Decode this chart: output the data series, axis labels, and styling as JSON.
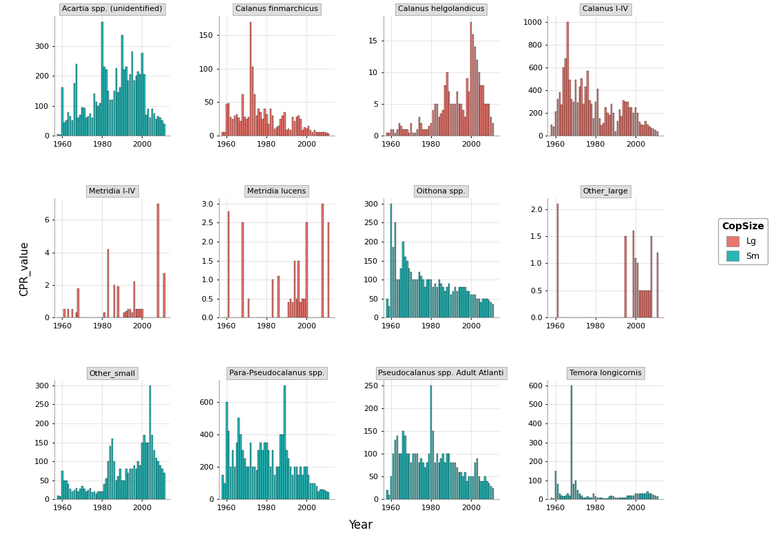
{
  "panels": [
    {
      "title": "Acartia spp. (unidentified)",
      "color": "#2ab5b5",
      "size": "Sm",
      "years": [
        1958,
        1959,
        1960,
        1961,
        1962,
        1963,
        1964,
        1965,
        1966,
        1967,
        1968,
        1969,
        1970,
        1971,
        1972,
        1973,
        1974,
        1975,
        1976,
        1977,
        1978,
        1979,
        1980,
        1981,
        1982,
        1983,
        1984,
        1985,
        1986,
        1987,
        1988,
        1989,
        1990,
        1991,
        1992,
        1993,
        1994,
        1995,
        1996,
        1997,
        1998,
        1999,
        2000,
        2001,
        2002,
        2003,
        2004,
        2005,
        2006,
        2007,
        2008,
        2009,
        2010,
        2011
      ],
      "values": [
        5,
        3,
        160,
        45,
        50,
        78,
        65,
        50,
        175,
        240,
        60,
        70,
        95,
        92,
        60,
        65,
        75,
        60,
        140,
        112,
        100,
        108,
        380,
        230,
        220,
        150,
        120,
        120,
        150,
        225,
        145,
        160,
        335,
        220,
        230,
        185,
        205,
        280,
        185,
        200,
        215,
        205,
        275,
        205,
        70,
        90,
        60,
        90,
        75,
        55,
        65,
        60,
        50,
        40
      ]
    },
    {
      "title": "Calanus finmarchicus",
      "color": "#e8766d",
      "size": "Lg",
      "years": [
        1958,
        1959,
        1960,
        1961,
        1962,
        1963,
        1964,
        1965,
        1966,
        1967,
        1968,
        1969,
        1970,
        1971,
        1972,
        1973,
        1974,
        1975,
        1976,
        1977,
        1978,
        1979,
        1980,
        1981,
        1982,
        1983,
        1984,
        1985,
        1986,
        1987,
        1988,
        1989,
        1990,
        1991,
        1992,
        1993,
        1994,
        1995,
        1996,
        1997,
        1998,
        1999,
        2000,
        2001,
        2002,
        2003,
        2004,
        2005,
        2006,
        2007,
        2008,
        2009,
        2010,
        2011
      ],
      "values": [
        5,
        5,
        47,
        48,
        28,
        25,
        30,
        32,
        27,
        22,
        62,
        28,
        25,
        28,
        170,
        103,
        62,
        30,
        40,
        35,
        25,
        40,
        32,
        18,
        40,
        30,
        10,
        12,
        15,
        25,
        30,
        35,
        8,
        10,
        8,
        28,
        22,
        28,
        30,
        25,
        8,
        12,
        10,
        15,
        8,
        5,
        8,
        5,
        5,
        5,
        5,
        5,
        4,
        3
      ]
    },
    {
      "title": "Calanus helgolandicus",
      "color": "#e8766d",
      "size": "Lg",
      "years": [
        1958,
        1959,
        1960,
        1961,
        1962,
        1963,
        1964,
        1965,
        1966,
        1967,
        1968,
        1969,
        1970,
        1971,
        1972,
        1973,
        1974,
        1975,
        1976,
        1977,
        1978,
        1979,
        1980,
        1981,
        1982,
        1983,
        1984,
        1985,
        1986,
        1987,
        1988,
        1989,
        1990,
        1991,
        1992,
        1993,
        1994,
        1995,
        1996,
        1997,
        1998,
        1999,
        2000,
        2001,
        2002,
        2003,
        2004,
        2005,
        2006,
        2007,
        2008,
        2009,
        2010,
        2011
      ],
      "values": [
        0.5,
        0.5,
        1,
        1,
        0.5,
        1,
        2,
        1.5,
        1,
        1,
        1,
        0.5,
        2,
        0.5,
        0.5,
        1,
        3,
        2,
        1,
        1,
        1,
        1.5,
        2,
        4,
        5,
        5,
        3,
        3.5,
        4,
        8,
        10,
        7,
        5,
        5,
        5,
        7,
        5,
        5,
        4,
        3,
        9,
        7,
        18,
        16,
        14,
        12,
        10,
        8,
        8,
        5,
        5,
        5,
        3,
        2
      ]
    },
    {
      "title": "Calanus I-IV",
      "color": "#e8766d",
      "size": "Lg",
      "years": [
        1958,
        1959,
        1960,
        1961,
        1962,
        1963,
        1964,
        1965,
        1966,
        1967,
        1968,
        1969,
        1970,
        1971,
        1972,
        1973,
        1974,
        1975,
        1976,
        1977,
        1978,
        1979,
        1980,
        1981,
        1982,
        1983,
        1984,
        1985,
        1986,
        1987,
        1988,
        1989,
        1990,
        1991,
        1992,
        1993,
        1994,
        1995,
        1996,
        1997,
        1998,
        1999,
        2000,
        2001,
        2002,
        2003,
        2004,
        2005,
        2006,
        2007,
        2008,
        2009,
        2010,
        2011
      ],
      "values": [
        100,
        80,
        210,
        320,
        380,
        270,
        600,
        680,
        1000,
        490,
        320,
        300,
        490,
        290,
        430,
        500,
        280,
        430,
        570,
        310,
        280,
        150,
        300,
        410,
        150,
        90,
        110,
        250,
        200,
        180,
        280,
        200,
        35,
        130,
        230,
        170,
        310,
        300,
        300,
        250,
        250,
        200,
        250,
        200,
        120,
        100,
        90,
        130,
        100,
        80,
        70,
        60,
        50,
        40
      ]
    },
    {
      "title": "Metridia I-IV",
      "color": "#e8766d",
      "size": "Lg",
      "years": [
        1958,
        1959,
        1960,
        1961,
        1962,
        1963,
        1964,
        1965,
        1966,
        1967,
        1968,
        1969,
        1970,
        1971,
        1972,
        1973,
        1974,
        1975,
        1976,
        1977,
        1978,
        1979,
        1980,
        1981,
        1982,
        1983,
        1984,
        1985,
        1986,
        1987,
        1988,
        1989,
        1990,
        1991,
        1992,
        1993,
        1994,
        1995,
        1996,
        1997,
        1998,
        1999,
        2000,
        2001,
        2002,
        2003,
        2004,
        2005,
        2006,
        2007,
        2008,
        2009,
        2010,
        2011
      ],
      "values": [
        0,
        0,
        0,
        0.5,
        0,
        0.5,
        0,
        0.5,
        0,
        0.3,
        1.8,
        0,
        0,
        0,
        0,
        0,
        0,
        0,
        0,
        0,
        0,
        0,
        0,
        0.3,
        0,
        4.2,
        0,
        0,
        2,
        0,
        1.9,
        0,
        0,
        0.3,
        0.4,
        0.5,
        0.5,
        0.3,
        2.2,
        0.5,
        0.5,
        0.5,
        0.5,
        0,
        0,
        0,
        0,
        0,
        0,
        0,
        7,
        0,
        0,
        2.7
      ]
    },
    {
      "title": "Metridia lucens",
      "color": "#e8766d",
      "size": "Lg",
      "years": [
        1958,
        1959,
        1960,
        1961,
        1962,
        1963,
        1964,
        1965,
        1966,
        1967,
        1968,
        1969,
        1970,
        1971,
        1972,
        1973,
        1974,
        1975,
        1976,
        1977,
        1978,
        1979,
        1980,
        1981,
        1982,
        1983,
        1984,
        1985,
        1986,
        1987,
        1988,
        1989,
        1990,
        1991,
        1992,
        1993,
        1994,
        1995,
        1996,
        1997,
        1998,
        1999,
        2000,
        2001,
        2002,
        2003,
        2004,
        2005,
        2006,
        2007,
        2008,
        2009,
        2010,
        2011
      ],
      "values": [
        0,
        0,
        0,
        2.8,
        0,
        0,
        0,
        0,
        0,
        0,
        2.5,
        0,
        0,
        0.5,
        0,
        0,
        0,
        0,
        0,
        0,
        0,
        0,
        0,
        0,
        0,
        1,
        0,
        0,
        1.1,
        0,
        0,
        0,
        0,
        0.4,
        0.5,
        0.4,
        1.5,
        0.5,
        1.5,
        0.4,
        0.5,
        0.5,
        2.5,
        0,
        0,
        0,
        0,
        0,
        0,
        0,
        3,
        0,
        0,
        2.5
      ]
    },
    {
      "title": "Oithona spp.",
      "color": "#2ab5b5",
      "size": "Sm",
      "years": [
        1958,
        1959,
        1960,
        1961,
        1962,
        1963,
        1964,
        1965,
        1966,
        1967,
        1968,
        1969,
        1970,
        1971,
        1972,
        1973,
        1974,
        1975,
        1976,
        1977,
        1978,
        1979,
        1980,
        1981,
        1982,
        1983,
        1984,
        1985,
        1986,
        1987,
        1988,
        1989,
        1990,
        1991,
        1992,
        1993,
        1994,
        1995,
        1996,
        1997,
        1998,
        1999,
        2000,
        2001,
        2002,
        2003,
        2004,
        2005,
        2006,
        2007,
        2008,
        2009,
        2010,
        2011
      ],
      "values": [
        50,
        30,
        300,
        185,
        250,
        100,
        100,
        130,
        200,
        160,
        150,
        130,
        120,
        100,
        100,
        100,
        120,
        110,
        100,
        80,
        100,
        100,
        100,
        80,
        90,
        80,
        100,
        90,
        80,
        70,
        80,
        90,
        60,
        70,
        80,
        70,
        80,
        80,
        80,
        80,
        70,
        70,
        60,
        60,
        60,
        50,
        50,
        40,
        50,
        50,
        50,
        45,
        40,
        35
      ]
    },
    {
      "title": "Other_large",
      "color": "#e8766d",
      "size": "Lg",
      "years": [
        1958,
        1959,
        1960,
        1961,
        1962,
        1963,
        1964,
        1965,
        1966,
        1967,
        1968,
        1969,
        1970,
        1971,
        1972,
        1973,
        1974,
        1975,
        1976,
        1977,
        1978,
        1979,
        1980,
        1981,
        1982,
        1983,
        1984,
        1985,
        1986,
        1987,
        1988,
        1989,
        1990,
        1991,
        1992,
        1993,
        1994,
        1995,
        1996,
        1997,
        1998,
        1999,
        2000,
        2001,
        2002,
        2003,
        2004,
        2005,
        2006,
        2007,
        2008,
        2009,
        2010,
        2011
      ],
      "values": [
        0,
        0,
        0,
        2.1,
        0,
        0,
        0,
        0,
        0,
        0,
        0,
        0,
        0,
        0,
        0,
        0,
        0,
        0,
        0,
        0,
        0,
        0,
        0,
        0,
        0,
        0,
        0,
        0,
        0,
        0,
        0,
        0,
        0,
        0,
        0,
        0,
        0,
        1.5,
        0,
        0,
        0,
        1.6,
        1.1,
        1,
        0.5,
        0.5,
        0.5,
        0.5,
        0.5,
        0.5,
        1.5,
        0,
        0,
        1.2
      ]
    },
    {
      "title": "Other_small",
      "color": "#2ab5b5",
      "size": "Sm",
      "years": [
        1958,
        1959,
        1960,
        1961,
        1962,
        1963,
        1964,
        1965,
        1966,
        1967,
        1968,
        1969,
        1970,
        1971,
        1972,
        1973,
        1974,
        1975,
        1976,
        1977,
        1978,
        1979,
        1980,
        1981,
        1982,
        1983,
        1984,
        1985,
        1986,
        1987,
        1988,
        1989,
        1990,
        1991,
        1992,
        1993,
        1994,
        1995,
        1996,
        1997,
        1998,
        1999,
        2000,
        2001,
        2002,
        2003,
        2004,
        2005,
        2006,
        2007,
        2008,
        2009,
        2010,
        2011
      ],
      "values": [
        10,
        8,
        75,
        50,
        50,
        40,
        28,
        20,
        25,
        30,
        20,
        28,
        35,
        28,
        20,
        25,
        30,
        18,
        20,
        15,
        20,
        20,
        20,
        40,
        55,
        100,
        140,
        160,
        100,
        50,
        60,
        80,
        50,
        50,
        80,
        70,
        80,
        80,
        90,
        80,
        100,
        90,
        150,
        170,
        150,
        150,
        300,
        170,
        130,
        110,
        100,
        90,
        80,
        70
      ]
    },
    {
      "title": "Para-Pseudocalanus spp.",
      "color": "#2ab5b5",
      "size": "Sm",
      "years": [
        1958,
        1959,
        1960,
        1961,
        1962,
        1963,
        1964,
        1965,
        1966,
        1967,
        1968,
        1969,
        1970,
        1971,
        1972,
        1973,
        1974,
        1975,
        1976,
        1977,
        1978,
        1979,
        1980,
        1981,
        1982,
        1983,
        1984,
        1985,
        1986,
        1987,
        1988,
        1989,
        1990,
        1991,
        1992,
        1993,
        1994,
        1995,
        1996,
        1997,
        1998,
        1999,
        2000,
        2001,
        2002,
        2003,
        2004,
        2005,
        2006,
        2007,
        2008,
        2009,
        2010,
        2011
      ],
      "values": [
        150,
        100,
        600,
        420,
        200,
        300,
        200,
        350,
        500,
        400,
        300,
        250,
        200,
        200,
        350,
        200,
        200,
        180,
        300,
        350,
        300,
        350,
        350,
        300,
        200,
        300,
        150,
        200,
        200,
        400,
        400,
        700,
        300,
        250,
        200,
        150,
        200,
        200,
        150,
        200,
        150,
        200,
        200,
        150,
        100,
        100,
        100,
        80,
        50,
        60,
        60,
        55,
        50,
        45
      ]
    },
    {
      "title": "Pseudocalanus spp. Adult Atlanti",
      "color": "#2ab5b5",
      "size": "Sm",
      "years": [
        1958,
        1959,
        1960,
        1961,
        1962,
        1963,
        1964,
        1965,
        1966,
        1967,
        1968,
        1969,
        1970,
        1971,
        1972,
        1973,
        1974,
        1975,
        1976,
        1977,
        1978,
        1979,
        1980,
        1981,
        1982,
        1983,
        1984,
        1985,
        1986,
        1987,
        1988,
        1989,
        1990,
        1991,
        1992,
        1993,
        1994,
        1995,
        1996,
        1997,
        1998,
        1999,
        2000,
        2001,
        2002,
        2003,
        2004,
        2005,
        2006,
        2007,
        2008,
        2009,
        2010,
        2011
      ],
      "values": [
        20,
        10,
        50,
        100,
        130,
        140,
        100,
        100,
        150,
        140,
        100,
        100,
        80,
        100,
        100,
        100,
        80,
        90,
        80,
        70,
        80,
        100,
        250,
        150,
        80,
        100,
        80,
        90,
        100,
        80,
        100,
        100,
        80,
        80,
        80,
        70,
        60,
        60,
        50,
        60,
        40,
        50,
        50,
        50,
        80,
        90,
        50,
        40,
        40,
        50,
        40,
        35,
        30,
        25
      ]
    },
    {
      "title": "Temora longicornis",
      "color": "#2ab5b5",
      "size": "Sm",
      "years": [
        1958,
        1959,
        1960,
        1961,
        1962,
        1963,
        1964,
        1965,
        1966,
        1967,
        1968,
        1969,
        1970,
        1971,
        1972,
        1973,
        1974,
        1975,
        1976,
        1977,
        1978,
        1979,
        1980,
        1981,
        1982,
        1983,
        1984,
        1985,
        1986,
        1987,
        1988,
        1989,
        1990,
        1991,
        1992,
        1993,
        1994,
        1995,
        1996,
        1997,
        1998,
        1999,
        2000,
        2001,
        2002,
        2003,
        2004,
        2005,
        2006,
        2007,
        2008,
        2009,
        2010,
        2011
      ],
      "values": [
        10,
        5,
        150,
        80,
        30,
        20,
        15,
        20,
        30,
        20,
        600,
        80,
        100,
        50,
        30,
        20,
        10,
        10,
        15,
        10,
        10,
        30,
        15,
        10,
        8,
        8,
        5,
        5,
        5,
        15,
        20,
        15,
        10,
        10,
        10,
        10,
        10,
        10,
        20,
        20,
        20,
        20,
        30,
        30,
        30,
        30,
        30,
        30,
        40,
        30,
        30,
        25,
        20,
        15
      ]
    }
  ],
  "ylabel": "CPR_value",
  "xlabel": "Year",
  "lg_color": "#e8766d",
  "sm_color": "#2ab5b5",
  "bg_color": "#ffffff",
  "panel_bg": "#ffffff",
  "strip_bg": "#dedede",
  "grid_color": "#d9d9d9",
  "legend_title": "CopSize",
  "legend_labels": [
    "Lg",
    "Sm"
  ]
}
